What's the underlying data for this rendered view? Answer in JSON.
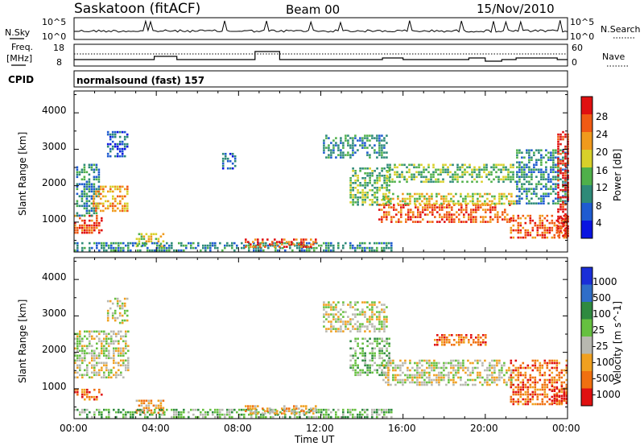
{
  "header": {
    "station": "Saskatoon (fitACF)",
    "beam": "Beam 00",
    "date": "15/Nov/2010"
  },
  "noise_panel": {
    "left_label": "N.Sky",
    "right_label": "N.Search",
    "left_ticks": [
      "10^5",
      "10^0"
    ],
    "right_ticks": [
      "10^5",
      "10^0"
    ]
  },
  "freq_panel": {
    "left_label_1": "Freq.",
    "left_label_2": "[MHz]",
    "right_label": "Nave",
    "left_ticks": [
      "18",
      "8"
    ],
    "right_ticks": [
      "60",
      "0"
    ]
  },
  "cpid": {
    "label": "CPID",
    "program": "normalsound (fast) 157"
  },
  "power_panel": {
    "ylabel": "Slant Range [km]",
    "yticks": [
      "4000",
      "3000",
      "2000",
      "1000"
    ],
    "colorbar_label": "Power [dB]",
    "colorbar_ticks": [
      "28",
      "24",
      "20",
      "16",
      "12",
      "8",
      "4"
    ],
    "colors": [
      "#0a14e0",
      "#1f5bd0",
      "#2e8a78",
      "#4fb04a",
      "#d8d02a",
      "#f09a1c",
      "#f05a14",
      "#e01010"
    ]
  },
  "velocity_panel": {
    "ylabel": "Slant Range [km]",
    "yticks": [
      "4000",
      "3000",
      "2000",
      "1000"
    ],
    "colorbar_label": "Velocity [m s^-1]",
    "colorbar_ticks": [
      "1000",
      "500",
      "100",
      "25",
      "-25",
      "-100",
      "-500",
      "-1000"
    ],
    "colors": [
      "#1a2ed8",
      "#2f6ec8",
      "#2f8a40",
      "#66c040",
      "#b8b8b0",
      "#f0a020",
      "#f07010",
      "#e01010"
    ]
  },
  "time_axis": {
    "ticks": [
      "00:00",
      "04:00",
      "08:00",
      "12:00",
      "16:00",
      "20:00",
      "00:00"
    ],
    "xlabel": "Time UT"
  },
  "chart_data": {
    "type": "heatmap",
    "x_range_hours": [
      0,
      24
    ],
    "y_range_km": [
      180,
      4600
    ],
    "frequency_steps": [
      {
        "start": 0.0,
        "end": 1.5,
        "freq": 12
      },
      {
        "start": 1.5,
        "end": 3.9,
        "freq": 12
      },
      {
        "start": 3.9,
        "end": 5.0,
        "freq": 14
      },
      {
        "start": 5.0,
        "end": 8.8,
        "freq": 12
      },
      {
        "start": 8.8,
        "end": 10.0,
        "freq": 17
      },
      {
        "start": 10.0,
        "end": 15.0,
        "freq": 12
      },
      {
        "start": 15.0,
        "end": 16.0,
        "freq": 13
      },
      {
        "start": 16.0,
        "end": 19.2,
        "freq": 12
      },
      {
        "start": 19.2,
        "end": 20.0,
        "freq": 13
      },
      {
        "start": 20.0,
        "end": 20.8,
        "freq": 11
      },
      {
        "start": 20.8,
        "end": 21.5,
        "freq": 12
      },
      {
        "start": 21.5,
        "end": 23.5,
        "freq": 13
      },
      {
        "start": 23.5,
        "end": 24.0,
        "freq": 12
      }
    ],
    "power_regions": [
      {
        "t0": 0.0,
        "t1": 1.4,
        "r0": 700,
        "r1": 1200,
        "level": 6
      },
      {
        "t0": 0.1,
        "t1": 1.2,
        "r0": 1200,
        "r1": 2600,
        "level": 2
      },
      {
        "t0": 0.9,
        "t1": 2.6,
        "r0": 1300,
        "r1": 2000,
        "level": 5
      },
      {
        "t0": 1.6,
        "t1": 2.6,
        "r0": 2800,
        "r1": 3500,
        "level": 1
      },
      {
        "t0": 3.0,
        "t1": 4.3,
        "r0": 350,
        "r1": 700,
        "level": 4
      },
      {
        "t0": 0.0,
        "t1": 15.5,
        "r0": 200,
        "r1": 450,
        "level": 2
      },
      {
        "t0": 8.3,
        "t1": 11.8,
        "r0": 300,
        "r1": 550,
        "level": 6
      },
      {
        "t0": 7.2,
        "t1": 7.9,
        "r0": 2500,
        "r1": 2900,
        "level": 1
      },
      {
        "t0": 12.1,
        "t1": 15.2,
        "r0": 2800,
        "r1": 3400,
        "level": 2
      },
      {
        "t0": 13.4,
        "t1": 15.3,
        "r0": 1500,
        "r1": 2500,
        "level": 3
      },
      {
        "t0": 14.8,
        "t1": 21.2,
        "r0": 1000,
        "r1": 1500,
        "level": 6
      },
      {
        "t0": 15.0,
        "t1": 21.5,
        "r0": 1500,
        "r1": 1800,
        "level": 4
      },
      {
        "t0": 15.2,
        "t1": 21.5,
        "r0": 2100,
        "r1": 2600,
        "level": 3
      },
      {
        "t0": 21.2,
        "t1": 24.0,
        "r0": 600,
        "r1": 1200,
        "level": 6
      },
      {
        "t0": 21.5,
        "t1": 24.0,
        "r0": 1500,
        "r1": 3000,
        "level": 2
      },
      {
        "t0": 23.5,
        "t1": 24.0,
        "r0": 600,
        "r1": 3500,
        "level": 7
      }
    ],
    "velocity_regions": [
      {
        "t0": 0.0,
        "t1": 1.4,
        "r0": 700,
        "r1": 1000,
        "level": 6
      },
      {
        "t0": 0.0,
        "t1": 2.6,
        "r0": 1300,
        "r1": 2600,
        "level": 4
      },
      {
        "t0": 1.6,
        "t1": 2.6,
        "r0": 2800,
        "r1": 3500,
        "level": 4
      },
      {
        "t0": 3.0,
        "t1": 4.3,
        "r0": 350,
        "r1": 700,
        "level": 5
      },
      {
        "t0": 0.0,
        "t1": 15.5,
        "r0": 200,
        "r1": 450,
        "level": 3
      },
      {
        "t0": 8.3,
        "t1": 11.8,
        "r0": 300,
        "r1": 550,
        "level": 5
      },
      {
        "t0": 12.1,
        "t1": 15.2,
        "r0": 2600,
        "r1": 3400,
        "level": 4
      },
      {
        "t0": 13.4,
        "t1": 15.3,
        "r0": 1400,
        "r1": 2400,
        "level": 3
      },
      {
        "t0": 15.0,
        "t1": 21.3,
        "r0": 1100,
        "r1": 1800,
        "level": 4
      },
      {
        "t0": 17.5,
        "t1": 20.0,
        "r0": 2200,
        "r1": 2500,
        "level": 6
      },
      {
        "t0": 21.2,
        "t1": 24.0,
        "r0": 600,
        "r1": 1800,
        "level": 6
      },
      {
        "t0": 23.2,
        "t1": 24.0,
        "r0": 600,
        "r1": 1100,
        "level": 7
      }
    ]
  }
}
